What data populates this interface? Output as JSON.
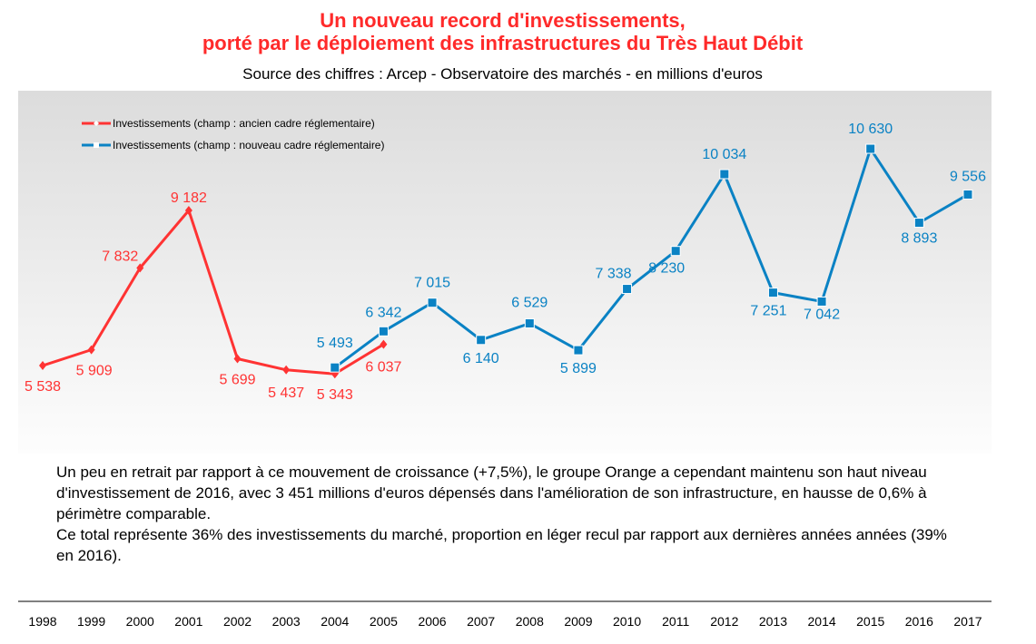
{
  "chart_data": {
    "type": "line",
    "title": "Un nouveau record d'investissements,",
    "title_line2": "porté par le déploiement des infrastructures du Très Haut Débit",
    "subtitle": "Source des chiffres : Arcep - Observatoire des marchés - en millions d'euros",
    "categories": [
      "1998",
      "1999",
      "2000",
      "2001",
      "2002",
      "2003",
      "2004",
      "2005",
      "2006",
      "2007",
      "2008",
      "2009",
      "2010",
      "2011",
      "2012",
      "2013",
      "2014",
      "2015",
      "2016",
      "2017"
    ],
    "series": [
      {
        "name": "Investissements (champ : ancien cadre réglementaire)",
        "color": "#ff3333",
        "marker": "diamond",
        "x": [
          "1998",
          "1999",
          "2000",
          "2001",
          "2002",
          "2003",
          "2004",
          "2005"
        ],
        "values": [
          5538,
          5909,
          7832,
          9182,
          5699,
          5437,
          5343,
          6037
        ],
        "labels": [
          "5 538",
          "5 909",
          "7 832",
          "9 182",
          "5 699",
          "5 437",
          "5 343",
          "6 037"
        ]
      },
      {
        "name": "Investissements (champ : nouveau cadre réglementaire)",
        "color": "#0a82c4",
        "marker": "square",
        "x": [
          "2004",
          "2005",
          "2006",
          "2007",
          "2008",
          "2009",
          "2010",
          "2011",
          "2012",
          "2013",
          "2014",
          "2015",
          "2016",
          "2017"
        ],
        "values": [
          5493,
          6342,
          7015,
          6140,
          6529,
          5899,
          7338,
          8230,
          10034,
          7251,
          7042,
          10630,
          8893,
          9556
        ],
        "labels": [
          "5 493",
          "6 342",
          "7 015",
          "6 140",
          "6 529",
          "5 899",
          "7 338",
          "8 230",
          "10 034",
          "7 251",
          "7 042",
          "10 630",
          "8 893",
          "9 556"
        ]
      }
    ],
    "ylim": [
      0,
      12000
    ],
    "grid": false,
    "legend": "top-left",
    "background": "gray gradient"
  },
  "note": [
    "Un peu en retrait par rapport à ce mouvement de croissance (+7,5%), le groupe Orange a cependant maintenu son haut niveau d'investissement de 2016, avec 3 451 millions d'euros dépensés dans l'amélioration de son infrastructure, en hausse de 0,6% à périmètre comparable.",
    "Ce total représente 36% des investissements du marché, proportion en léger recul par rapport aux dernières années années (39% en 2016)."
  ]
}
